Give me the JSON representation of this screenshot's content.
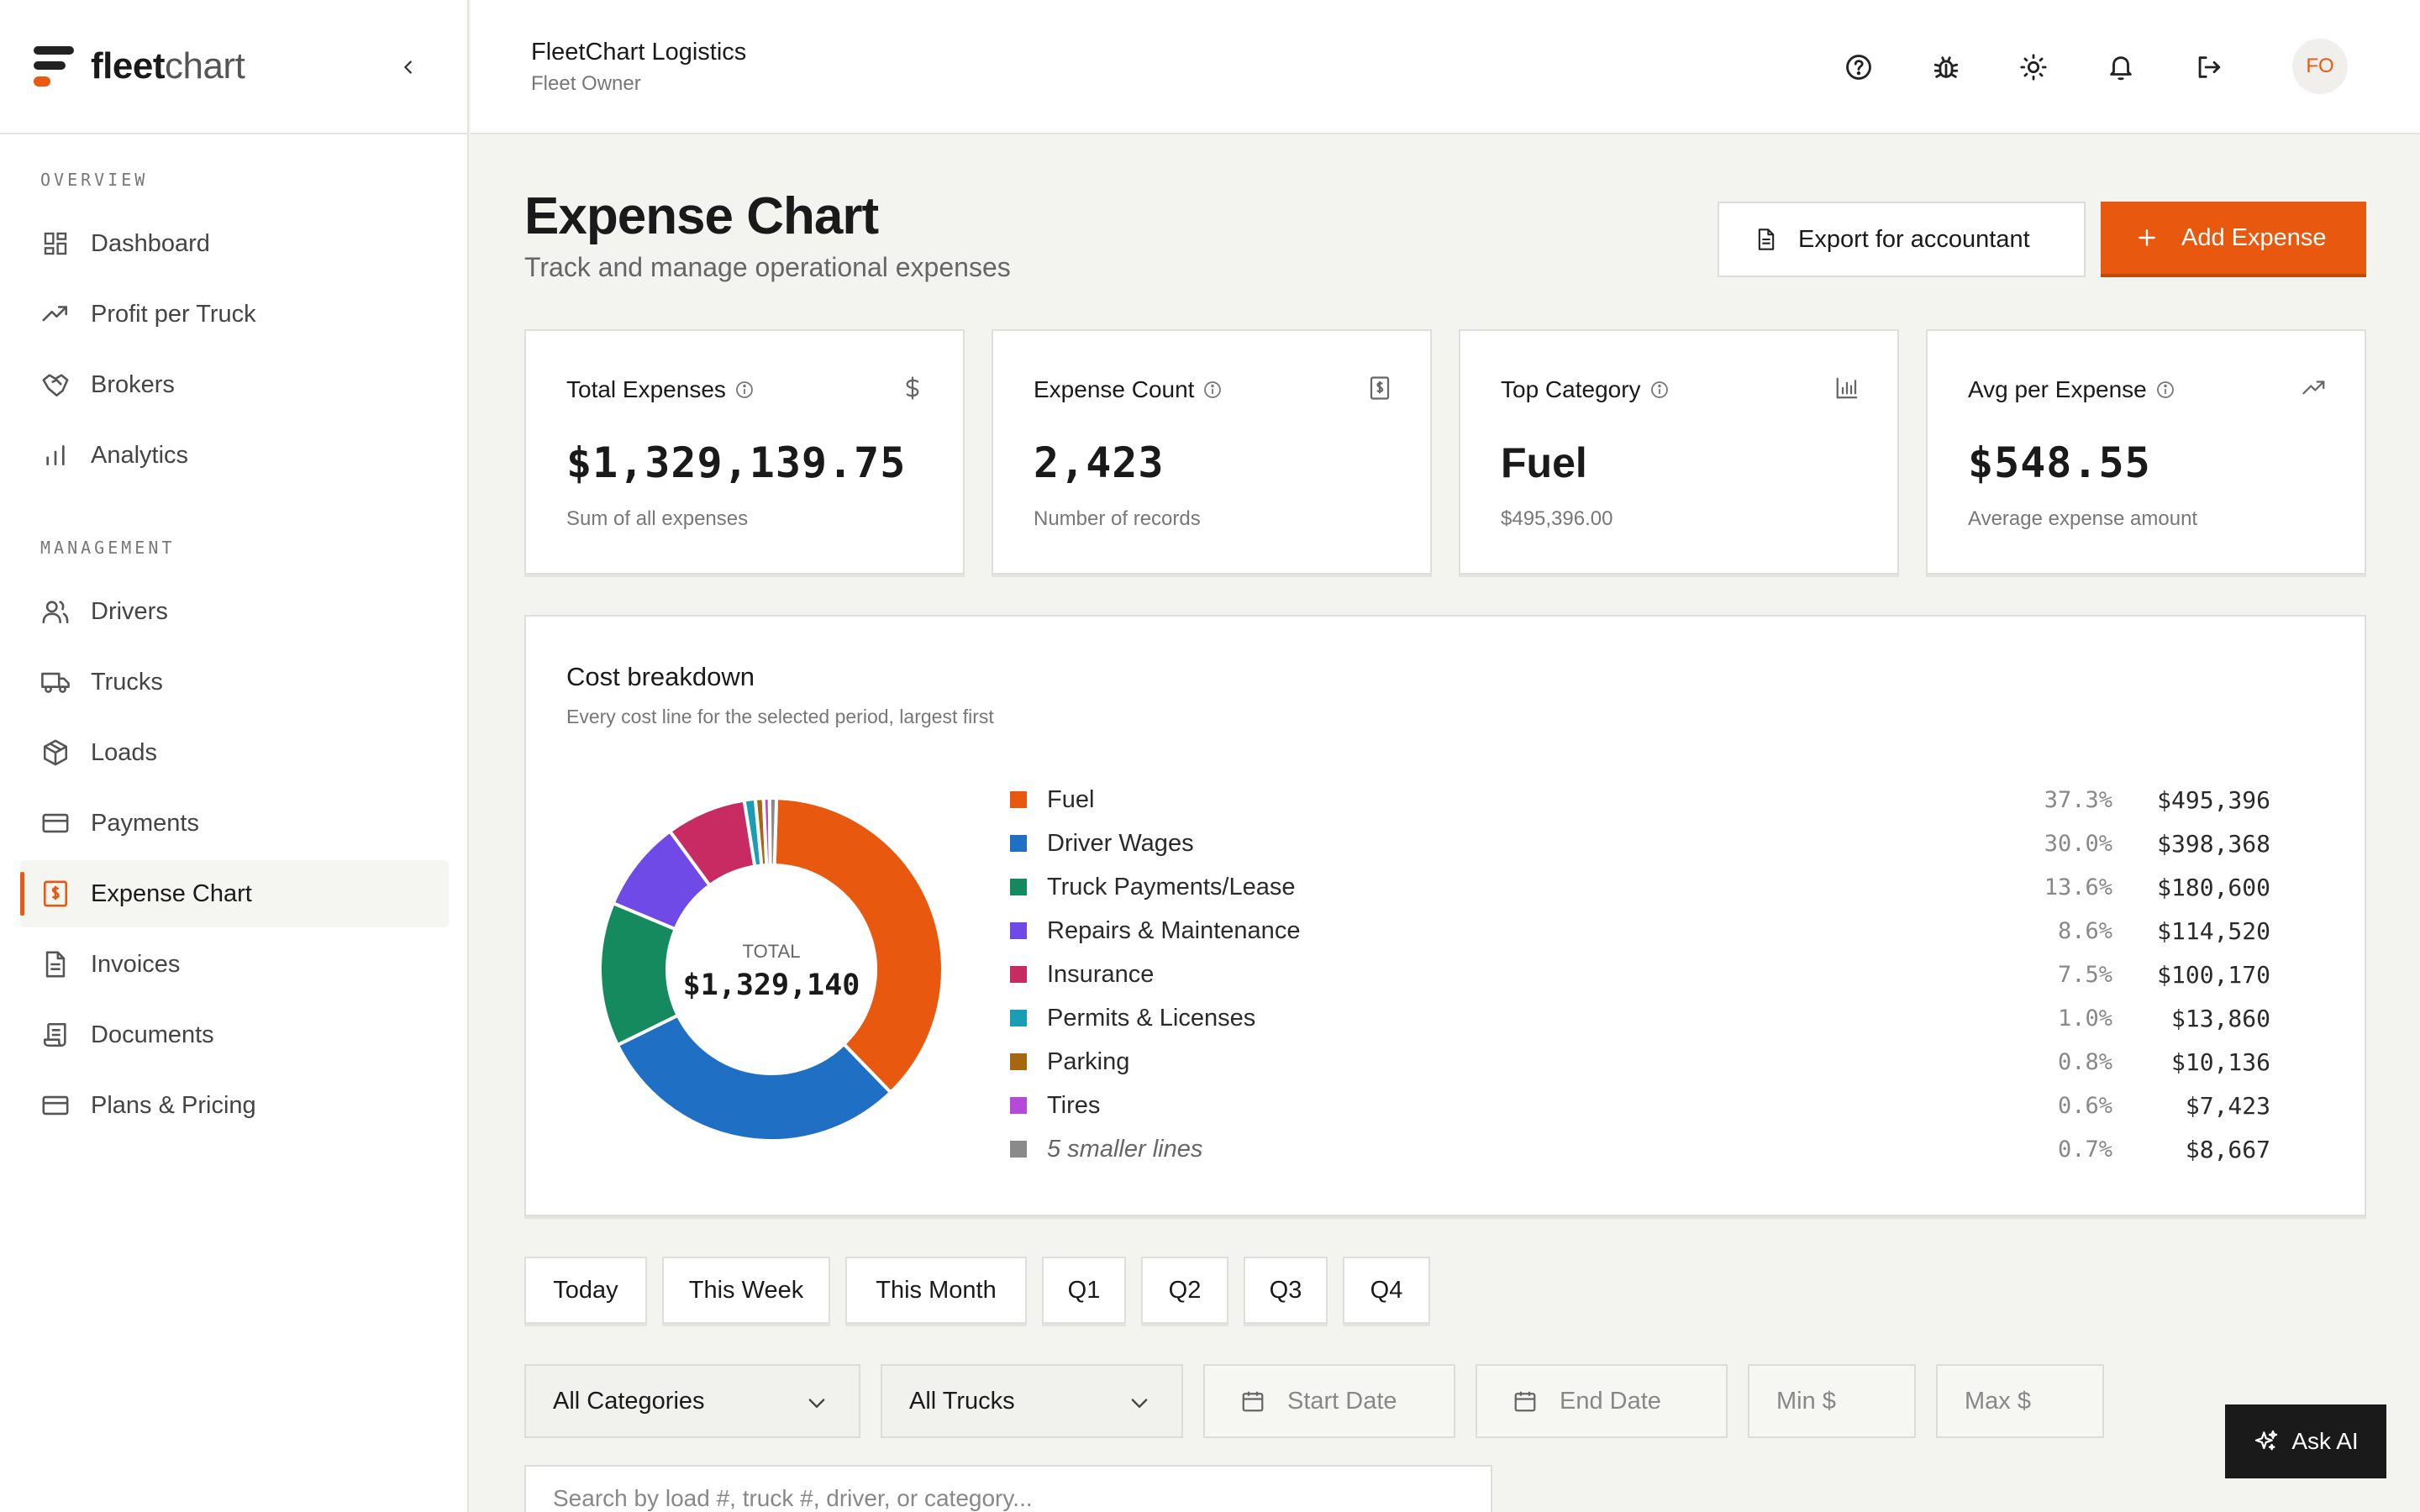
{
  "brand": {
    "bold": "fleet",
    "light": "chart"
  },
  "org": {
    "name": "FleetChart Logistics",
    "role": "Fleet Owner"
  },
  "avatar_initials": "FO",
  "sidebar": {
    "sections": [
      {
        "title": "OVERVIEW"
      },
      {
        "title": "MANAGEMENT"
      }
    ],
    "items": [
      {
        "label": "Dashboard",
        "icon": "grid-icon"
      },
      {
        "label": "Profit per Truck",
        "icon": "trending-up-icon"
      },
      {
        "label": "Brokers",
        "icon": "handshake-icon"
      },
      {
        "label": "Analytics",
        "icon": "bar-chart-icon"
      },
      {
        "label": "Drivers",
        "icon": "users-icon"
      },
      {
        "label": "Trucks",
        "icon": "truck-icon"
      },
      {
        "label": "Loads",
        "icon": "package-icon"
      },
      {
        "label": "Payments",
        "icon": "credit-card-icon"
      },
      {
        "label": "Expense Chart",
        "icon": "receipt-dollar-icon",
        "active": true
      },
      {
        "label": "Invoices",
        "icon": "document-icon"
      },
      {
        "label": "Documents",
        "icon": "scroll-icon"
      },
      {
        "label": "Plans & Pricing",
        "icon": "credit-card-icon"
      }
    ]
  },
  "page": {
    "title": "Expense Chart",
    "subtitle": "Track and manage operational expenses",
    "export_label": "Export for accountant",
    "add_label": "Add Expense"
  },
  "stats": [
    {
      "label": "Total Expenses",
      "value": "$1,329,139.75",
      "foot": "Sum of all expenses",
      "icon": "dollar-icon"
    },
    {
      "label": "Expense Count",
      "value": "2,423",
      "foot": "Number of records",
      "icon": "receipt-icon"
    },
    {
      "label": "Top Category",
      "value": "Fuel",
      "foot": "$495,396.00",
      "icon": "bar-chart-icon"
    },
    {
      "label": "Avg per Expense",
      "value": "$548.55",
      "foot": "Average expense amount",
      "icon": "trending-up-icon"
    }
  ],
  "breakdown": {
    "title": "Cost breakdown",
    "subtitle": "Every cost line for the selected period, largest first",
    "center_label": "TOTAL",
    "center_value": "$1,329,140"
  },
  "chart_data": {
    "type": "pie",
    "title": "Cost breakdown",
    "donut": true,
    "total": 1329140,
    "slices": [
      {
        "name": "Fuel",
        "value": 495396,
        "amount": "$495,396",
        "pct": "37.3%",
        "color": "#e8580f"
      },
      {
        "name": "Driver Wages",
        "value": 398368,
        "amount": "$398,368",
        "pct": "30.0%",
        "color": "#1f6fc5"
      },
      {
        "name": "Truck Payments/Lease",
        "value": 180600,
        "amount": "$180,600",
        "pct": "13.6%",
        "color": "#148a5e"
      },
      {
        "name": "Repairs & Maintenance",
        "value": 114520,
        "amount": "$114,520",
        "pct": "8.6%",
        "color": "#6f4ae6"
      },
      {
        "name": "Insurance",
        "value": 100170,
        "amount": "$100,170",
        "pct": "7.5%",
        "color": "#c82a62"
      },
      {
        "name": "Permits & Licenses",
        "value": 13860,
        "amount": "$13,860",
        "pct": "1.0%",
        "color": "#1b9db3"
      },
      {
        "name": "Parking",
        "value": 10136,
        "amount": "$10,136",
        "pct": "0.8%",
        "color": "#a6670e"
      },
      {
        "name": "Tires",
        "value": 7423,
        "amount": "$7,423",
        "pct": "0.6%",
        "color": "#b44ad6"
      },
      {
        "name": "5 smaller lines",
        "value": 8667,
        "amount": "$8,667",
        "pct": "0.7%",
        "color": "#8a8a8a",
        "italic": true
      }
    ]
  },
  "periods": [
    "Today",
    "This Week",
    "This Month",
    "Q1",
    "Q2",
    "Q3",
    "Q4"
  ],
  "filters": {
    "category": "All Categories",
    "truck": "All Trucks",
    "start_date": "Start Date",
    "end_date": "End Date",
    "min": "Min $",
    "max": "Max $"
  },
  "search": {
    "placeholder": "Search by load #, truck #, driver, or category..."
  },
  "ask_ai_label": "Ask AI",
  "colors": {
    "accent": "#e8580f",
    "dark": "#1a1a1a"
  }
}
